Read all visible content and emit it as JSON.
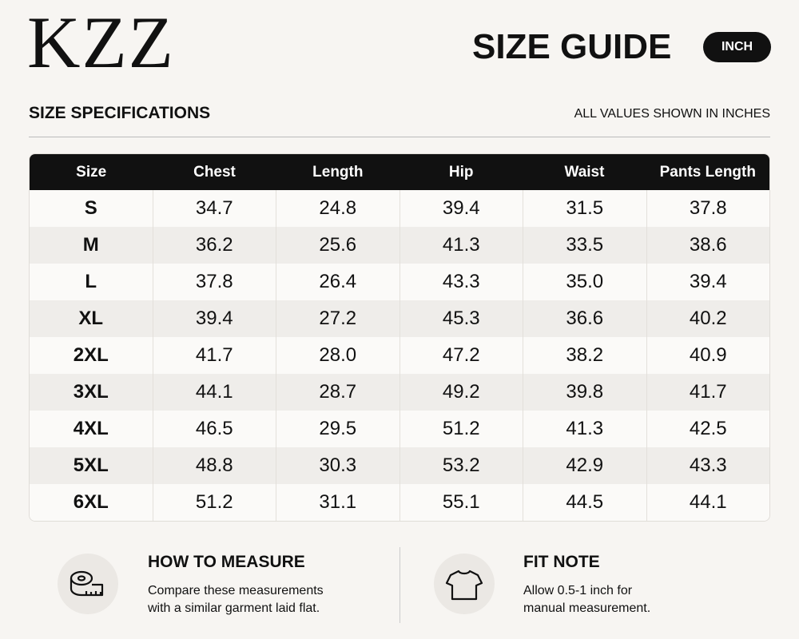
{
  "header": {
    "logo": "KZZ",
    "title": "SIZE GUIDE",
    "unit_badge": "INCH"
  },
  "section": {
    "title": "SIZE SPECIFICATIONS",
    "note": "ALL VALUES SHOWN IN INCHES"
  },
  "table": {
    "columns": [
      "Size",
      "Chest",
      "Length",
      "Hip",
      "Waist",
      "Pants Length"
    ],
    "rows": [
      [
        "S",
        "34.7",
        "24.8",
        "39.4",
        "31.5",
        "37.8"
      ],
      [
        "M",
        "36.2",
        "25.6",
        "41.3",
        "33.5",
        "38.6"
      ],
      [
        "L",
        "37.8",
        "26.4",
        "43.3",
        "35.0",
        "39.4"
      ],
      [
        "XL",
        "39.4",
        "27.2",
        "45.3",
        "36.6",
        "40.2"
      ],
      [
        "2XL",
        "41.7",
        "28.0",
        "47.2",
        "38.2",
        "40.9"
      ],
      [
        "3XL",
        "44.1",
        "28.7",
        "49.2",
        "39.8",
        "41.7"
      ],
      [
        "4XL",
        "46.5",
        "29.5",
        "51.2",
        "41.3",
        "42.5"
      ],
      [
        "5XL",
        "48.8",
        "30.3",
        "53.2",
        "42.9",
        "43.3"
      ],
      [
        "6XL",
        "51.2",
        "31.1",
        "55.1",
        "44.5",
        "44.1"
      ]
    ]
  },
  "notes": [
    {
      "title": "HOW TO MEASURE",
      "lines": [
        "Compare these measurements",
        "with a similar garment laid flat."
      ]
    },
    {
      "title": "FIT NOTE",
      "lines": [
        "Allow 0.5-1 inch for",
        "manual measurement."
      ]
    }
  ]
}
